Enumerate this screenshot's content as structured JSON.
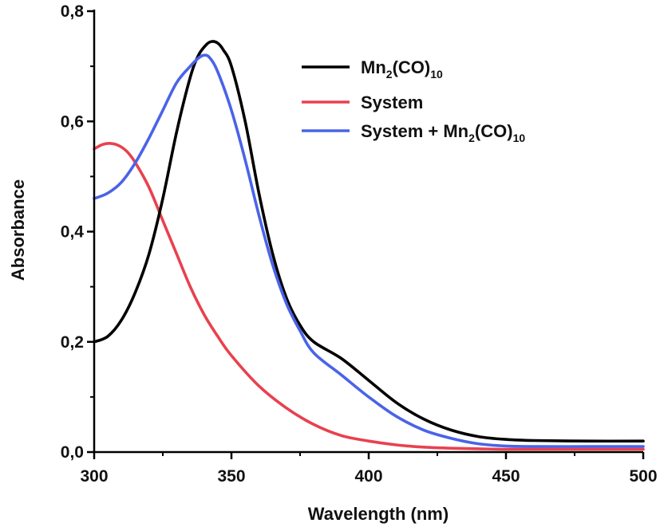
{
  "chart_data": {
    "type": "line",
    "title": "",
    "xlabel": "Wavelength (nm)",
    "ylabel": "Absorbance",
    "xlim": [
      300,
      500
    ],
    "ylim": [
      0.0,
      0.8
    ],
    "xticks": [
      300,
      350,
      400,
      450,
      500
    ],
    "xtick_labels": [
      "300",
      "350",
      "400",
      "450",
      "500"
    ],
    "yticks": [
      0.0,
      0.2,
      0.4,
      0.6,
      0.8
    ],
    "ytick_labels": [
      "0,0",
      "0,2",
      "0,4",
      "0,6",
      "0,8"
    ],
    "grid": false,
    "legend_position": "top-right",
    "series": [
      {
        "legend": {
          "base": "Mn",
          "sub1": "2",
          "mid": "(CO)",
          "sub2": "10"
        },
        "color": "#000000",
        "x": [
          300,
          305,
          310,
          315,
          320,
          325,
          330,
          335,
          338,
          341,
          343,
          345,
          347,
          350,
          355,
          360,
          365,
          370,
          375,
          380,
          390,
          400,
          410,
          420,
          430,
          440,
          450,
          460,
          480,
          500
        ],
        "y": [
          0.2,
          0.21,
          0.24,
          0.29,
          0.36,
          0.46,
          0.58,
          0.68,
          0.72,
          0.74,
          0.745,
          0.742,
          0.73,
          0.7,
          0.6,
          0.47,
          0.36,
          0.28,
          0.23,
          0.2,
          0.17,
          0.13,
          0.09,
          0.06,
          0.04,
          0.028,
          0.023,
          0.021,
          0.02,
          0.02
        ]
      },
      {
        "legend": {
          "base": "System"
        },
        "color": "#e8414f",
        "x": [
          300,
          303,
          306,
          309,
          312,
          315,
          320,
          325,
          330,
          335,
          340,
          345,
          350,
          360,
          370,
          380,
          390,
          400,
          410,
          420,
          430,
          440,
          450,
          470,
          500
        ],
        "y": [
          0.55,
          0.558,
          0.56,
          0.556,
          0.545,
          0.525,
          0.48,
          0.42,
          0.36,
          0.3,
          0.25,
          0.21,
          0.175,
          0.12,
          0.08,
          0.05,
          0.03,
          0.02,
          0.013,
          0.009,
          0.007,
          0.006,
          0.005,
          0.005,
          0.005
        ]
      },
      {
        "legend": {
          "base": "System + Mn",
          "sub1": "2",
          "mid": "(CO)",
          "sub2": "10"
        },
        "color": "#4a63e8",
        "x": [
          300,
          305,
          310,
          315,
          320,
          325,
          330,
          335,
          338,
          340,
          342,
          345,
          350,
          355,
          360,
          365,
          370,
          375,
          380,
          390,
          400,
          410,
          420,
          430,
          440,
          450,
          460,
          480,
          500
        ],
        "y": [
          0.46,
          0.47,
          0.49,
          0.525,
          0.57,
          0.62,
          0.67,
          0.7,
          0.715,
          0.72,
          0.716,
          0.69,
          0.62,
          0.53,
          0.43,
          0.34,
          0.27,
          0.22,
          0.18,
          0.14,
          0.1,
          0.065,
          0.04,
          0.025,
          0.015,
          0.011,
          0.01,
          0.01,
          0.01
        ]
      }
    ]
  }
}
